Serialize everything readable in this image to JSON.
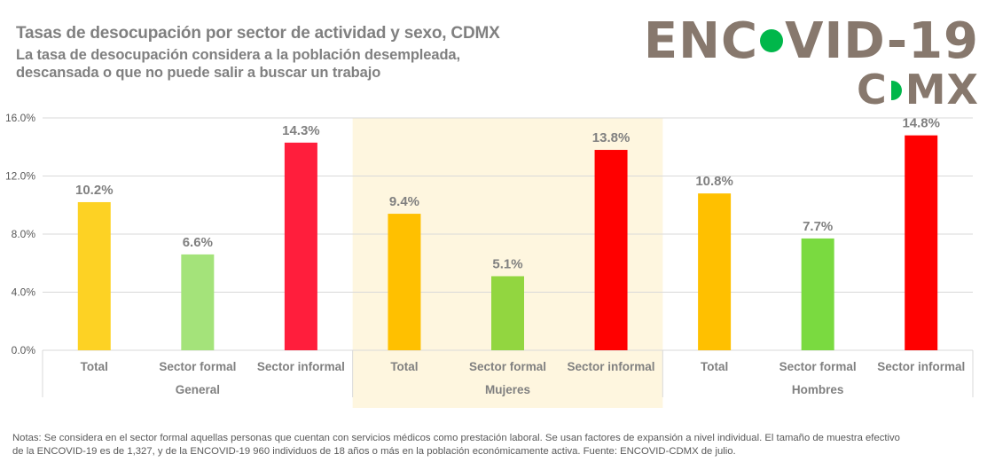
{
  "header": {
    "title": "Tasas de desocupación por sector de actividad y sexo, CDMX",
    "subtitle_line1": "La tasa de desocupación considera a la población desempleada,",
    "subtitle_line2": "descansada o que no puede salir a buscar un trabajo"
  },
  "logo": {
    "line1_left": "ENC",
    "line1_right": "VID-19",
    "line2_left": "C",
    "line2_right": "MX",
    "dot_color": "#00b74a",
    "text_color": "#87786d"
  },
  "chart_data": {
    "type": "bar",
    "title": "Tasas de desocupación por sector de actividad y sexo, CDMX",
    "xlabel": "",
    "ylabel": "",
    "ylim": [
      0,
      16
    ],
    "yticks": [
      0,
      4,
      8,
      12,
      16
    ],
    "ytick_labels": [
      "0.0%",
      "4.0%",
      "8.0%",
      "12.0%",
      "16.0%"
    ],
    "grid": true,
    "legend": "none",
    "groups": [
      {
        "name": "General",
        "highlighted": false,
        "categories": [
          "Total",
          "Sector formal",
          "Sector informal"
        ],
        "values": [
          10.2,
          6.6,
          14.3
        ],
        "labels": [
          "10.2%",
          "6.6%",
          "14.3%"
        ],
        "colors": [
          "#fdd224",
          "#a4e37a",
          "#ff1e3c"
        ]
      },
      {
        "name": "Mujeres",
        "highlighted": true,
        "categories": [
          "Total",
          "Sector formal",
          "Sector informal"
        ],
        "values": [
          9.4,
          5.1,
          13.8
        ],
        "labels": [
          "9.4%",
          "5.1%",
          "13.8%"
        ],
        "colors": [
          "#ffc000",
          "#92d640",
          "#ff0000"
        ]
      },
      {
        "name": "Hombres",
        "highlighted": false,
        "categories": [
          "Total",
          "Sector formal",
          "Sector informal"
        ],
        "values": [
          10.8,
          7.7,
          14.8
        ],
        "labels": [
          "10.8%",
          "7.7%",
          "14.8%"
        ],
        "colors": [
          "#ffc000",
          "#7ada40",
          "#ff0000"
        ]
      }
    ],
    "highlight_color": "#fef6df"
  },
  "notes": {
    "line1": "Notas: Se considera en el sector formal aquellas personas que cuentan con servicios médicos como prestación laboral. Se usan factores de expansión a nivel individual. El tamaño de muestra efectivo",
    "line2": "de la ENCOVID-19 es de 1,327, y de la ENCOVID-19 960 individuos de 18 años o más en la población económicamente activa. Fuente: ENCOVID-CDMX de julio."
  }
}
